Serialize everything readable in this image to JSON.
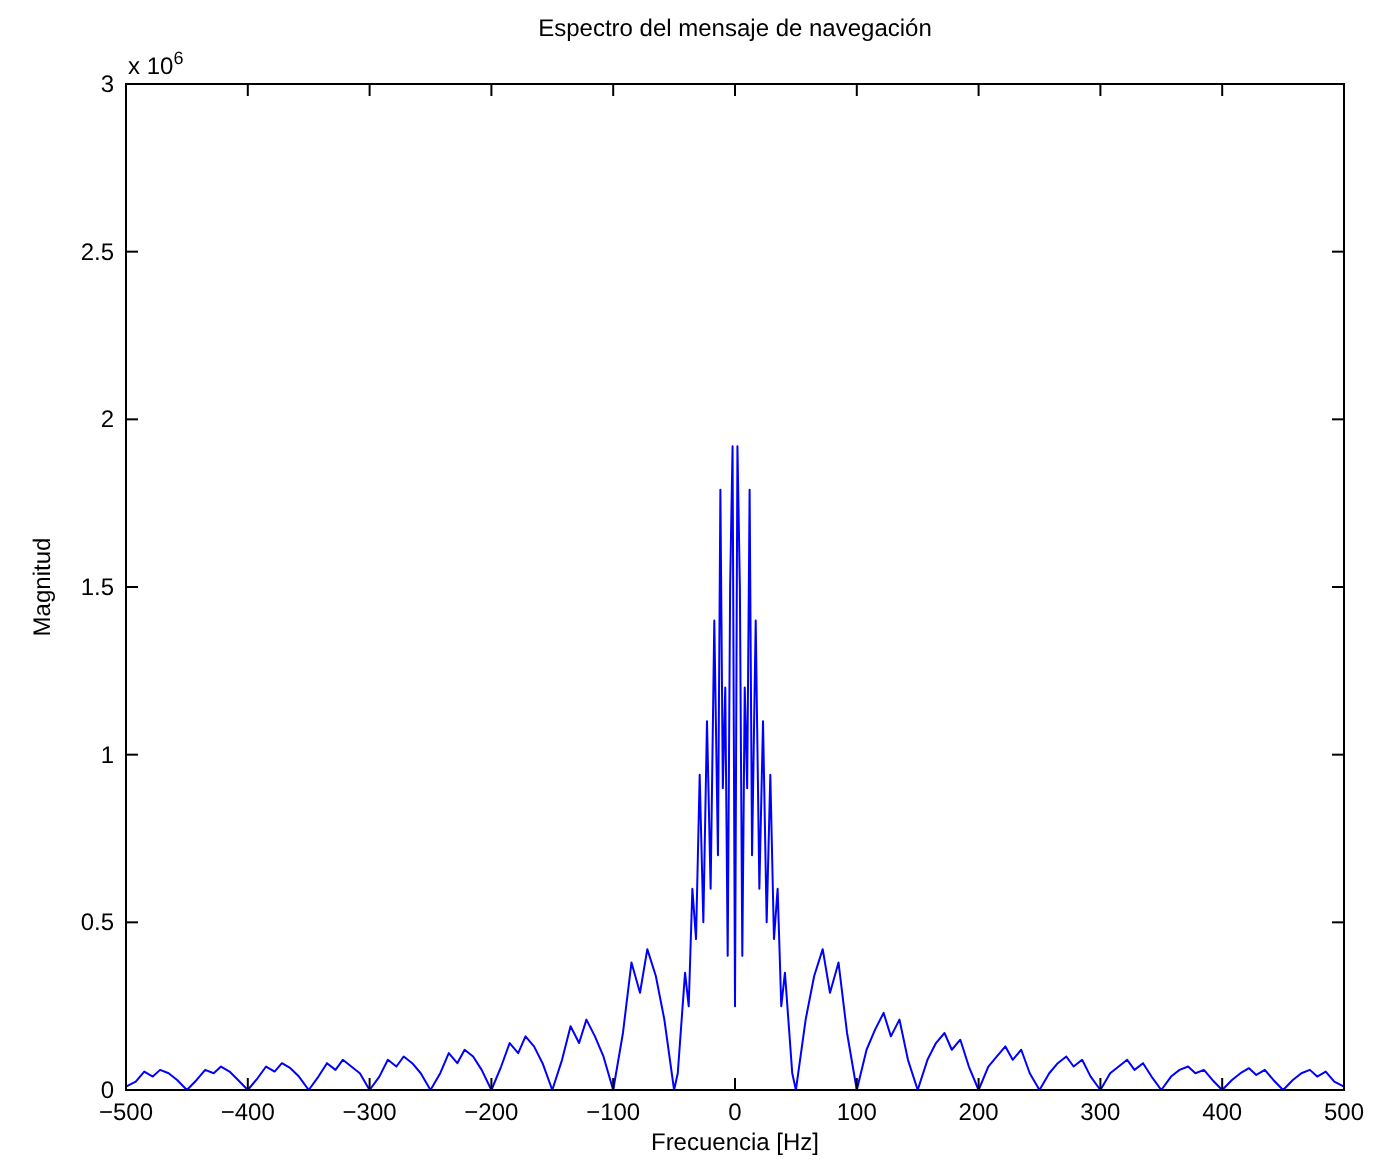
{
  "chart_data": {
    "type": "line",
    "title": "Espectro del mensaje de navegación",
    "xlabel": "Frecuencia [Hz]",
    "ylabel": "Magnitud",
    "annotations": [
      "x 10$^{6}$"
    ],
    "xlim": [
      -500,
      500
    ],
    "xticks": [
      -500,
      -400,
      -300,
      -200,
      -100,
      0,
      100,
      200,
      300,
      400,
      500
    ],
    "ylim": [
      0,
      3
    ],
    "yticks": [
      0,
      0.5,
      1,
      1.5,
      2,
      2.5,
      3
    ],
    "grid": false,
    "marker": "none",
    "line_style": "solid",
    "x": [
      -500,
      -492,
      -485,
      -478,
      -472,
      -465,
      -458,
      -450,
      -442,
      -435,
      -428,
      -422,
      -415,
      -408,
      -400,
      -392,
      -385,
      -378,
      -372,
      -365,
      -358,
      -350,
      -342,
      -335,
      -328,
      -322,
      -315,
      -308,
      -300,
      -292,
      -285,
      -278,
      -272,
      -265,
      -258,
      -250,
      -242,
      -235,
      -228,
      -222,
      -215,
      -208,
      -200,
      -192,
      -185,
      -178,
      -172,
      -165,
      -158,
      -150,
      -142,
      -135,
      -128,
      -122,
      -115,
      -108,
      -100,
      -92,
      -85,
      -78,
      -72,
      -65,
      -58,
      -50,
      -47,
      -44,
      -41,
      -38,
      -35,
      -32,
      -29,
      -26,
      -23,
      -20,
      -17,
      -14,
      -12,
      -10,
      -8,
      -6,
      -4,
      -2,
      0,
      2,
      4,
      6,
      8,
      10,
      12,
      14,
      17,
      20,
      23,
      26,
      29,
      32,
      35,
      38,
      41,
      44,
      47,
      50,
      58,
      65,
      72,
      78,
      85,
      92,
      100,
      108,
      115,
      122,
      128,
      135,
      142,
      150,
      158,
      165,
      172,
      178,
      185,
      192,
      200,
      208,
      215,
      222,
      228,
      235,
      242,
      250,
      258,
      265,
      272,
      278,
      285,
      292,
      300,
      308,
      315,
      322,
      328,
      335,
      342,
      350,
      358,
      365,
      372,
      378,
      385,
      392,
      400,
      408,
      415,
      422,
      428,
      435,
      442,
      450,
      458,
      465,
      472,
      478,
      485,
      492,
      500
    ],
    "series": [
      {
        "color": "#0000ff",
        "values": [
          0.01,
          0.025,
          0.055,
          0.04,
          0.06,
          0.05,
          0.03,
          0,
          0.03,
          0.06,
          0.05,
          0.07,
          0.055,
          0.03,
          0,
          0.035,
          0.07,
          0.055,
          0.08,
          0.065,
          0.04,
          0,
          0.04,
          0.08,
          0.06,
          0.09,
          0.07,
          0.05,
          0,
          0.04,
          0.09,
          0.07,
          0.1,
          0.08,
          0.05,
          0,
          0.05,
          0.11,
          0.08,
          0.12,
          0.1,
          0.06,
          0,
          0.07,
          0.14,
          0.11,
          0.16,
          0.13,
          0.08,
          0,
          0.09,
          0.19,
          0.14,
          0.21,
          0.16,
          0.1,
          0,
          0.17,
          0.38,
          0.29,
          0.42,
          0.34,
          0.21,
          0,
          0.05,
          0.2,
          0.35,
          0.25,
          0.6,
          0.45,
          0.94,
          0.5,
          1.1,
          0.6,
          1.4,
          0.7,
          1.79,
          0.9,
          1.2,
          0.4,
          1.5,
          1.92,
          0.25,
          1.92,
          1.5,
          0.4,
          1.2,
          0.9,
          1.79,
          0.7,
          1.4,
          0.6,
          1.1,
          0.5,
          0.94,
          0.45,
          0.6,
          0.25,
          0.35,
          0.2,
          0.05,
          0,
          0.21,
          0.34,
          0.42,
          0.29,
          0.38,
          0.17,
          0,
          0.12,
          0.18,
          0.23,
          0.16,
          0.21,
          0.09,
          0,
          0.09,
          0.14,
          0.17,
          0.12,
          0.15,
          0.07,
          0,
          0.07,
          0.1,
          0.13,
          0.09,
          0.12,
          0.05,
          0,
          0.05,
          0.08,
          0.1,
          0.07,
          0.09,
          0.04,
          0,
          0.05,
          0.07,
          0.09,
          0.06,
          0.08,
          0.04,
          0,
          0.04,
          0.06,
          0.07,
          0.05,
          0.06,
          0.03,
          0,
          0.03,
          0.05,
          0.065,
          0.045,
          0.06,
          0.03,
          0,
          0.03,
          0.05,
          0.06,
          0.04,
          0.055,
          0.025,
          0.01
        ]
      }
    ]
  }
}
